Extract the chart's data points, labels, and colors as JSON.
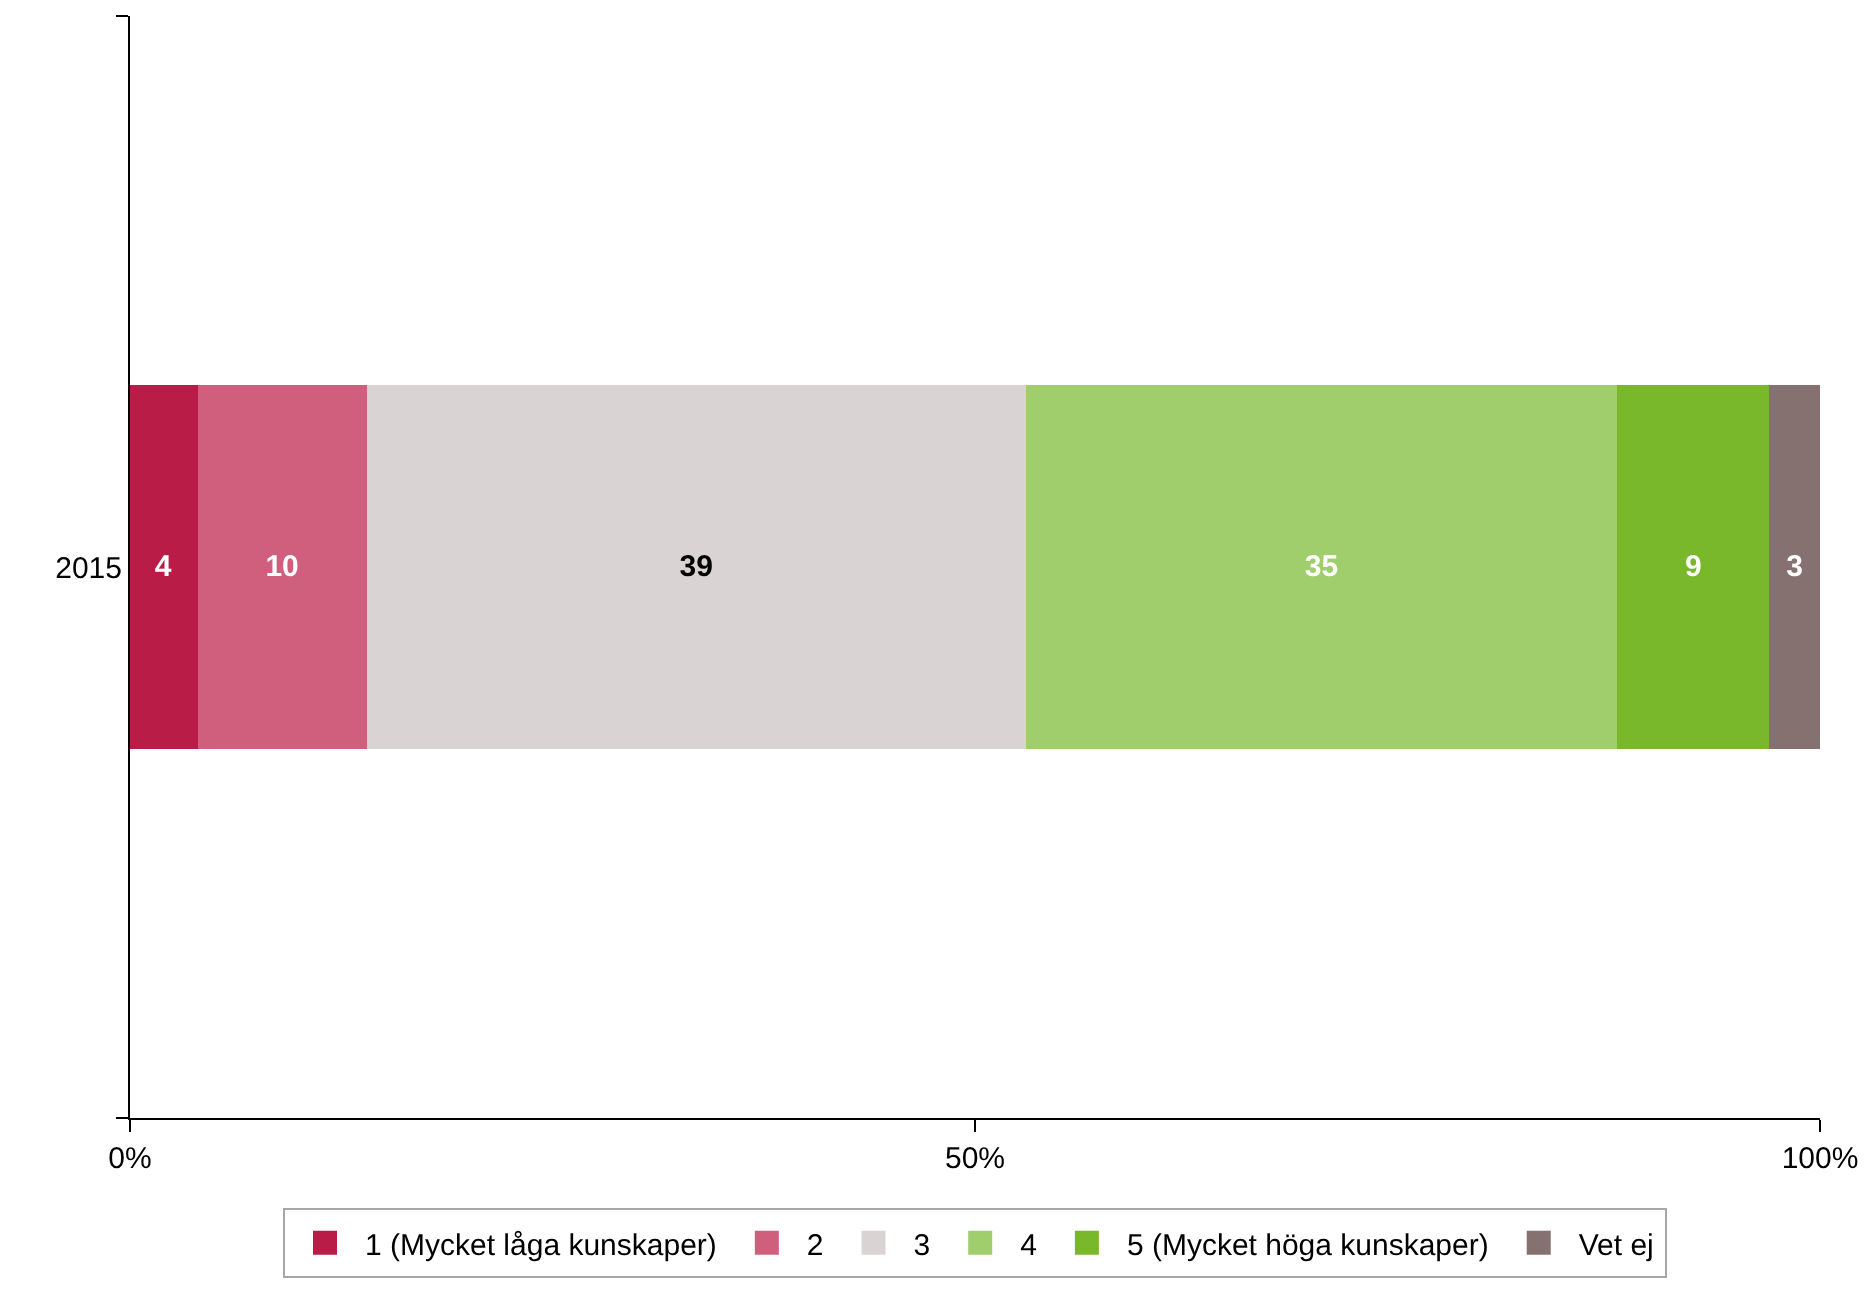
{
  "chart_data": {
    "type": "bar",
    "orientation": "horizontal",
    "stacked": true,
    "categories": [
      "2015"
    ],
    "series": [
      {
        "name": "1 (Mycket låga kunskaper)",
        "color": "#b91d47",
        "values": [
          4
        ]
      },
      {
        "name": "2",
        "color": "#cf5f7c",
        "values": [
          10
        ]
      },
      {
        "name": "3",
        "color": "#d9d3d3",
        "values": [
          39
        ]
      },
      {
        "name": "4",
        "color": "#a0ce6c",
        "values": [
          35
        ]
      },
      {
        "name": "5 (Mycket höga kunskaper)",
        "color": "#79b82a",
        "values": [
          9
        ]
      },
      {
        "name": "Vet ej",
        "color": "#857270",
        "values": [
          3
        ]
      }
    ],
    "xlim": [
      0,
      100
    ],
    "xticks": [
      {
        "value": 0,
        "label": "0%"
      },
      {
        "value": 50,
        "label": "50%"
      },
      {
        "value": 100,
        "label": "100%"
      }
    ],
    "data_labels": true,
    "legend": "bottom"
  }
}
